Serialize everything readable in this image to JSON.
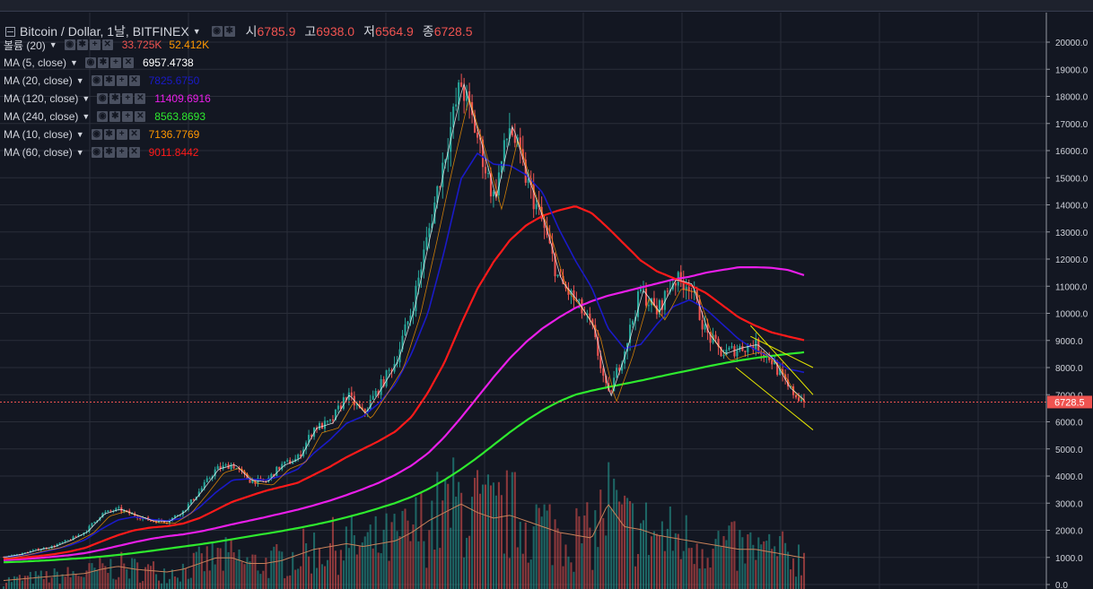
{
  "header": {
    "symbol": "Bitcoin / Dollar, 1날, BITFINEX",
    "ohlc": [
      {
        "key": "시",
        "value": "6785.9"
      },
      {
        "key": "고",
        "value": "6938.0"
      },
      {
        "key": "저",
        "value": "6564.9"
      },
      {
        "key": "종",
        "value": "6728.5"
      }
    ]
  },
  "indicators": [
    {
      "name": "볼륨 (20)",
      "values": [
        "33.725K",
        "52.412K"
      ],
      "colors": [
        "#ef5350",
        "#ff9800"
      ]
    },
    {
      "name": "MA (5, close)",
      "values": [
        "6957.4738"
      ],
      "colors": [
        "#ffffff"
      ]
    },
    {
      "name": "MA (20, close)",
      "values": [
        "7825.6750"
      ],
      "colors": [
        "#1a1ac8"
      ]
    },
    {
      "name": "MA (120, close)",
      "values": [
        "11409.6916"
      ],
      "colors": [
        "#e91ee9"
      ]
    },
    {
      "name": "MA (240, close)",
      "values": [
        "8563.8693"
      ],
      "colors": [
        "#2eea2e"
      ]
    },
    {
      "name": "MA (10, close)",
      "values": [
        "7136.7769"
      ],
      "colors": [
        "#ff9800"
      ]
    },
    {
      "name": "MA (60, close)",
      "values": [
        "9011.8442"
      ],
      "colors": [
        "#ff1a1a"
      ]
    }
  ],
  "price_label": "6728.5",
  "colors": {
    "background": "#131722",
    "grid": "#2a2e39",
    "up": "#26a69a",
    "down": "#ef5350",
    "ma5": "#ffffff",
    "ma10": "#ff9800",
    "ma20": "#1a1ac8",
    "ma60": "#ff1a1a",
    "ma120": "#e91ee9",
    "ma240": "#2eea2e",
    "trendline": "#e6e600",
    "volume_ma": "#c8825a"
  },
  "chart_data": {
    "type": "candlestick",
    "ylim": [
      0,
      20500
    ],
    "y_ticks": [
      "20000.0",
      "19000.0",
      "18000.0",
      "17000.0",
      "16000.0",
      "15000.0",
      "14000.0",
      "13000.0",
      "12000.0",
      "11000.0",
      "10000.0",
      "9000.0",
      "8000.0",
      "7000.0",
      "6000.0",
      "5000.0",
      "4000.0",
      "3000.0",
      "2000.0",
      "1000.0",
      "0.0"
    ],
    "close_profile": [
      1020,
      1120,
      1280,
      1400,
      1640,
      1950,
      2600,
      2780,
      2560,
      2350,
      2330,
      2710,
      3450,
      4250,
      4430,
      3850,
      3780,
      4390,
      4650,
      5770,
      5950,
      7000,
      6300,
      7250,
      8250,
      10180,
      12950,
      15850,
      18500,
      16500,
      14250,
      16950,
      14950,
      13300,
      11200,
      10450,
      9500,
      6900,
      8650,
      10850,
      10050,
      11250,
      11080,
      9280,
      8500,
      8720,
      8850,
      8300,
      7250,
      6728.5
    ],
    "ma_profiles": {
      "ma20": [
        1000,
        1050,
        1150,
        1280,
        1430,
        1650,
        2050,
        2380,
        2500,
        2400,
        2350,
        2450,
        2850,
        3400,
        3850,
        3900,
        3850,
        4000,
        4250,
        4850,
        5350,
        5950,
        6200,
        6700,
        7400,
        8550,
        10050,
        12350,
        14950,
        15900,
        15500,
        15450,
        15100,
        14450,
        13100,
        11950,
        10950,
        9450,
        8700,
        8850,
        9600,
        10250,
        10500,
        10150,
        9600,
        9050,
        8650,
        8380,
        7950,
        7825.675
      ],
      "ma60": [
        950,
        980,
        1040,
        1110,
        1210,
        1350,
        1590,
        1820,
        2000,
        2100,
        2150,
        2250,
        2450,
        2750,
        3050,
        3250,
        3450,
        3600,
        3750,
        4050,
        4350,
        4700,
        5000,
        5300,
        5650,
        6200,
        7100,
        8200,
        9600,
        10900,
        11900,
        12700,
        13250,
        13600,
        13800,
        13950,
        13700,
        13150,
        12550,
        11950,
        11550,
        11300,
        11050,
        10750,
        10300,
        9850,
        9550,
        9300,
        9150,
        9011.8442
      ],
      "ma120": [
        900,
        930,
        970,
        1020,
        1080,
        1160,
        1280,
        1420,
        1560,
        1680,
        1780,
        1850,
        1950,
        2080,
        2220,
        2350,
        2480,
        2620,
        2760,
        2920,
        3100,
        3300,
        3520,
        3760,
        4050,
        4400,
        4850,
        5450,
        6150,
        6900,
        7650,
        8350,
        8950,
        9450,
        9850,
        10200,
        10450,
        10650,
        10800,
        10950,
        11100,
        11250,
        11350,
        11500,
        11600,
        11700,
        11700,
        11680,
        11600,
        11409.6916
      ],
      "ma240": [
        820,
        840,
        870,
        900,
        940,
        980,
        1030,
        1090,
        1160,
        1240,
        1320,
        1400,
        1480,
        1570,
        1670,
        1770,
        1870,
        1970,
        2080,
        2200,
        2330,
        2480,
        2640,
        2820,
        3010,
        3240,
        3520,
        3860,
        4250,
        4680,
        5150,
        5620,
        6050,
        6430,
        6750,
        7000,
        7150,
        7280,
        7400,
        7520,
        7650,
        7780,
        7900,
        8030,
        8150,
        8260,
        8350,
        8430,
        8500,
        8563.8693
      ]
    },
    "volume_profile": [
      300,
      350,
      400,
      450,
      500,
      550,
      700,
      800,
      700,
      650,
      600,
      700,
      900,
      1100,
      1100,
      900,
      900,
      1000,
      1200,
      1400,
      1500,
      1600,
      1500,
      1600,
      1700,
      2000,
      2400,
      2700,
      3000,
      2700,
      2500,
      2600,
      2400,
      2200,
      2000,
      1900,
      1800,
      3000,
      2200,
      2100,
      1900,
      1800,
      1700,
      1600,
      1500,
      1400,
      1400,
      1300,
      1200,
      1100
    ]
  }
}
